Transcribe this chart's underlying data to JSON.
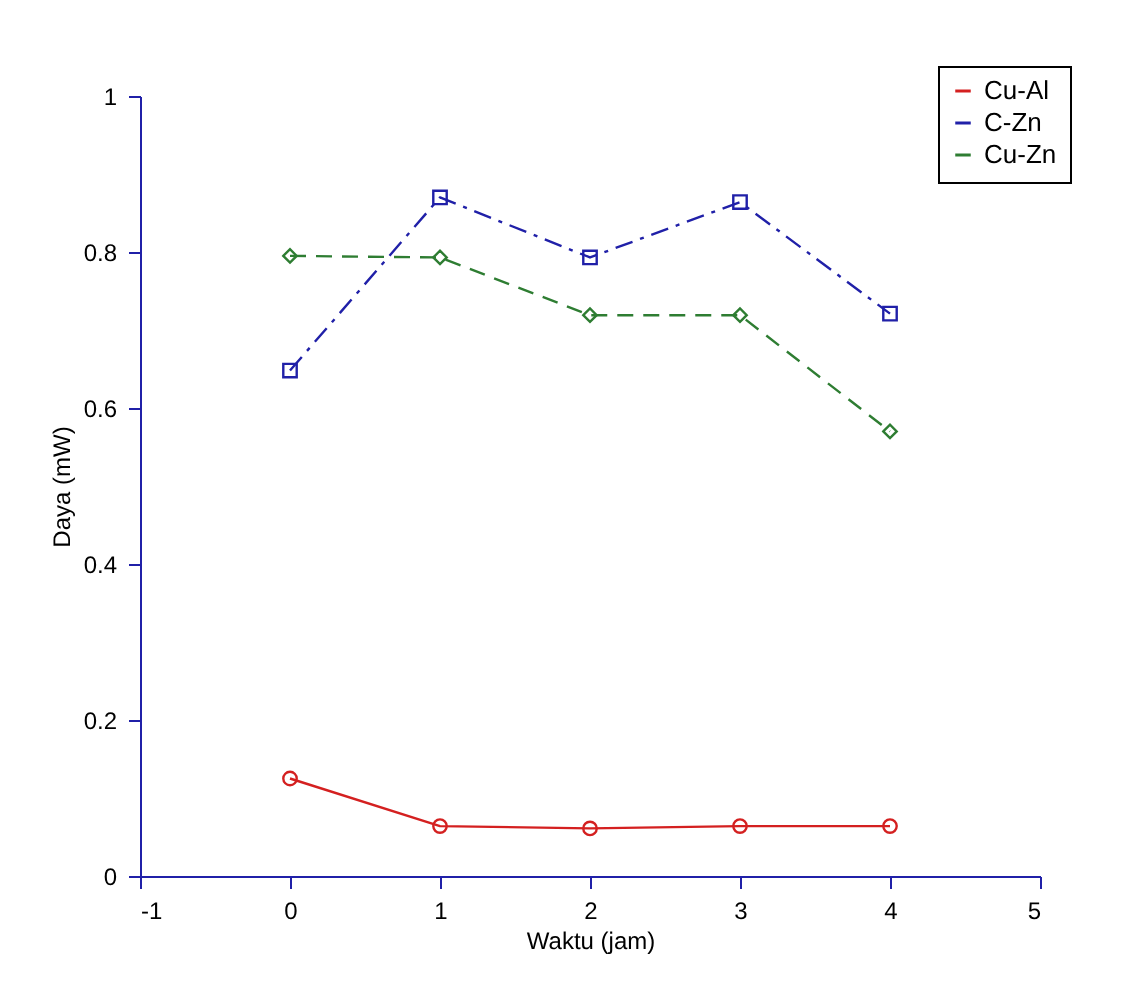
{
  "chart_data": {
    "type": "line",
    "xlabel": "Waktu (jam)",
    "ylabel": "Daya (mW)",
    "x": [
      0,
      1,
      2,
      3,
      4
    ],
    "series": [
      {
        "name": "Cu-Al",
        "color": "#d42020",
        "values": [
          0.125,
          0.064,
          0.061,
          0.064,
          0.064
        ],
        "marker": "circle",
        "line_style": "solid"
      },
      {
        "name": "C-Zn",
        "color": "#2020a8",
        "values": [
          0.648,
          0.87,
          0.793,
          0.864,
          0.721
        ],
        "marker": "square",
        "line_style": "dashdot"
      },
      {
        "name": "Cu-Zn",
        "color": "#2e7d32",
        "values": [
          0.795,
          0.793,
          0.719,
          0.719,
          0.57
        ],
        "marker": "diamond",
        "line_style": "dashed"
      }
    ],
    "xlim": [
      -1,
      5
    ],
    "xticks": [
      -1,
      0,
      1,
      2,
      3,
      4,
      5
    ],
    "ylim": [
      0,
      1
    ],
    "yticks": [
      0,
      0.2,
      0.4,
      0.6,
      0.8,
      1
    ],
    "grid": false,
    "legend": "top right"
  }
}
